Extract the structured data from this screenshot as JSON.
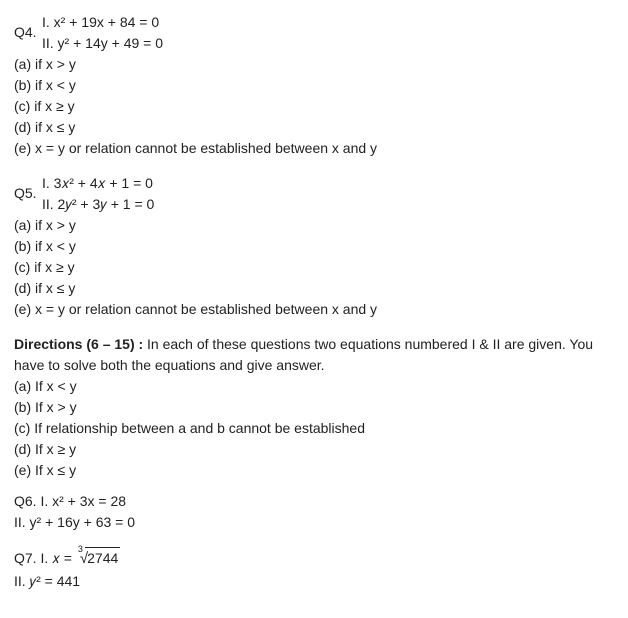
{
  "q4": {
    "label": "Q4.",
    "eq1": "I. x² + 19x + 84 = 0",
    "eq2": "II. y² + 14y + 49 = 0",
    "a": "(a) if x > y",
    "b": "(b) if x < y",
    "c": "(c) if x ≥ y",
    "d": "(d) if x ≤ y",
    "e": "(e) x = y or relation cannot be established between x and y"
  },
  "q5": {
    "label": "Q5.",
    "eq1": "I. 3𝑥² + 4𝑥 + 1 = 0",
    "eq2": "II. 2𝑦² + 3𝑦 + 1 = 0",
    "a": "(a) if x > y",
    "b": "(b) if x < y",
    "c": "(c) if x ≥ y",
    "d": "(d) if x ≤ y",
    "e": "(e) x = y or relation cannot be established between x and y"
  },
  "directions": {
    "heading": "Directions (6 – 15) :",
    "text": " In each of these questions two equations numbered I & II are given. You have to solve both the equations and give answer.",
    "a": "(a) If x < y",
    "b": "(b) If x > y",
    "c": "(c) If relationship between a and b cannot be established",
    "d": "(d) If x ≥ y",
    "e": "(e) If x ≤ y"
  },
  "q6": {
    "line1": "Q6. I. x² + 3x = 28",
    "line2": "II. y² + 16y + 63 = 0"
  },
  "q7": {
    "prefix": "Q7. I. 𝑥 =",
    "rad_index": "3",
    "rad_content": "2744",
    "line2": "II. 𝑦² = 441"
  }
}
